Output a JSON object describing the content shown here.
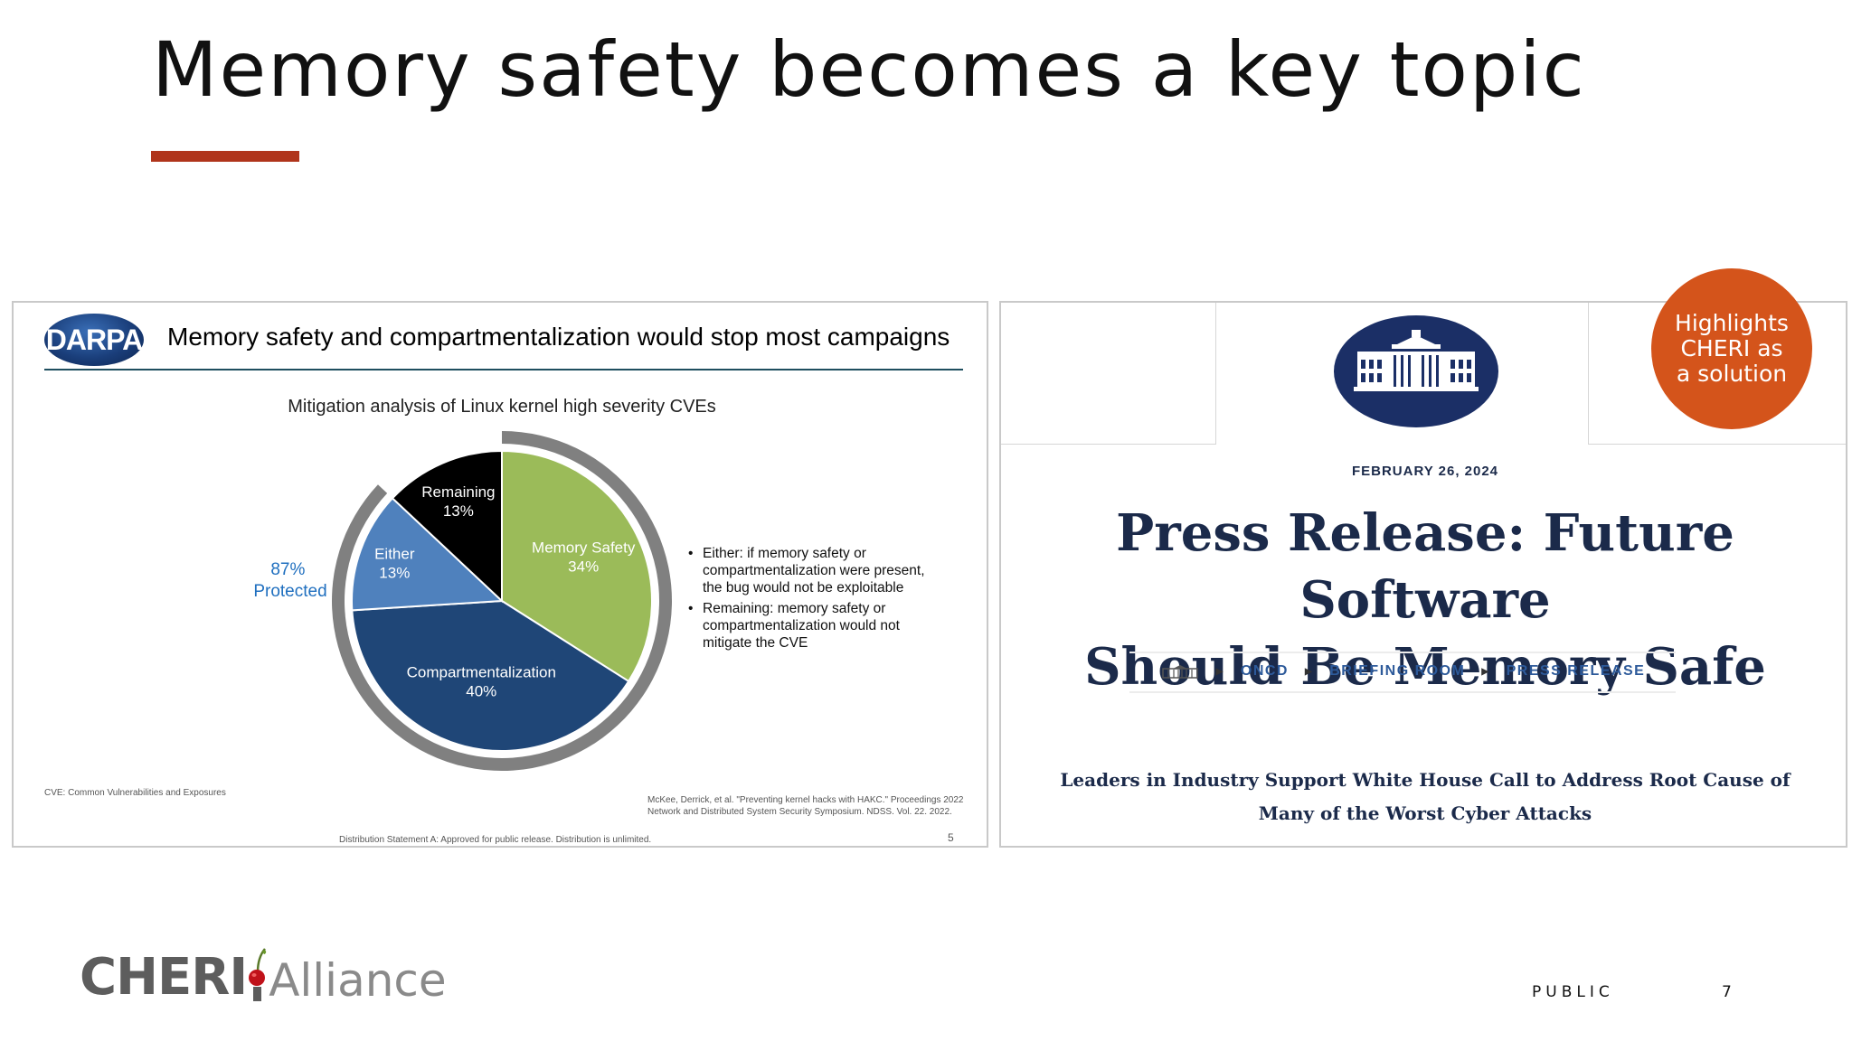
{
  "slide": {
    "title": "Memory safety becomes a key topic",
    "accent_color": "#b0341b",
    "classification": "PUBLIC",
    "page_number": "7",
    "footer_logo": {
      "cheri": "CHERI",
      "alliance": "Alliance"
    }
  },
  "darpa_slide": {
    "logo_text": "DARPA",
    "heading": "Memory safety and compartmentalization would stop most campaigns",
    "protected_label": [
      "87%",
      "Protected"
    ],
    "bullets": [
      [
        "Either: if memory safety or",
        "compartmentalization were present,",
        "the bug would not be exploitable"
      ],
      [
        "Remaining: memory safety or",
        "compartmentalization would not",
        "mitigate the CVE"
      ]
    ],
    "cve_note": "CVE: Common Vulnerabilities and Exposures",
    "citation": [
      "McKee, Derrick, et al. \"Preventing kernel hacks with HAKC.\" Proceedings 2022",
      "Network and Distributed System Security Symposium. NDSS. Vol. 22. 2022."
    ],
    "distribution": "Distribution Statement A: Approved for public release.  Distribution is unlimited.",
    "inner_page": "5"
  },
  "chart_data": {
    "type": "pie",
    "title": "Mitigation analysis of Linux kernel high severity CVEs",
    "unit": "%",
    "slices": [
      {
        "label": "Memory Safety",
        "value": 34,
        "display": "34%",
        "color": "#9bbb59",
        "text_color": "#ffffff"
      },
      {
        "label": "Compartmentalization",
        "value": 40,
        "display": "40%",
        "color": "#1f4677",
        "text_color": "#ffffff"
      },
      {
        "label": "Either",
        "value": 13,
        "display": "13%",
        "color": "#4f81bd",
        "text_color": "#ffffff"
      },
      {
        "label": "Remaining",
        "value": 13,
        "display": "13%",
        "color": "#000000",
        "text_color": "#ffffff"
      }
    ],
    "protected_share": 87,
    "protected_color": "#1f6fbf",
    "outer_arc_color": "#808080"
  },
  "whitehouse_slide": {
    "date": "FEBRUARY 26, 2024",
    "headline": [
      "Press Release: Future Software",
      "Should Be Memory Safe"
    ],
    "breadcrumbs": [
      "ONCD",
      "BRIEFING ROOM",
      "PRESS RELEASE"
    ],
    "subheadline": [
      "Leaders in Industry Support White House Call to Address Root Cause of",
      "Many of the Worst Cyber Attacks"
    ],
    "badge": {
      "lines": [
        "Highlights",
        "CHERI as",
        "a solution"
      ],
      "color": "#d4541b"
    },
    "navy": "#1b2a4a"
  }
}
